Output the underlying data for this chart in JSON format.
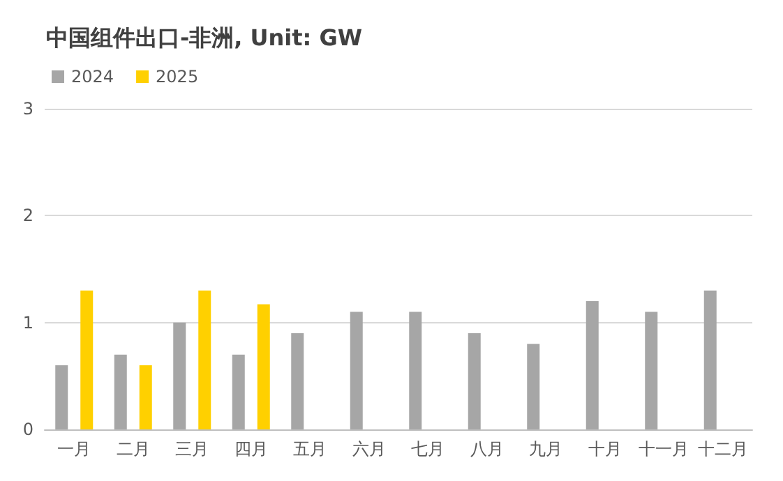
{
  "chart_data": {
    "type": "bar",
    "title": "中国组件出口-非洲, Unit: GW",
    "categories": [
      "一月",
      "二月",
      "三月",
      "四月",
      "五月",
      "六月",
      "七月",
      "八月",
      "九月",
      "十月",
      "十一月",
      "十二月"
    ],
    "series": [
      {
        "name": "2024",
        "color": "#a6a6a6",
        "values": [
          0.6,
          0.7,
          1.0,
          0.7,
          0.9,
          1.1,
          1.1,
          0.9,
          0.8,
          1.2,
          1.1,
          1.3
        ]
      },
      {
        "name": "2025",
        "color": "#ffd000",
        "values": [
          1.3,
          0.6,
          1.3,
          1.17,
          null,
          null,
          null,
          null,
          null,
          null,
          null,
          null
        ]
      }
    ],
    "ylim": [
      0,
      3
    ],
    "yticks": [
      0,
      1,
      2,
      3
    ],
    "grid": "y",
    "legend": "top left"
  }
}
